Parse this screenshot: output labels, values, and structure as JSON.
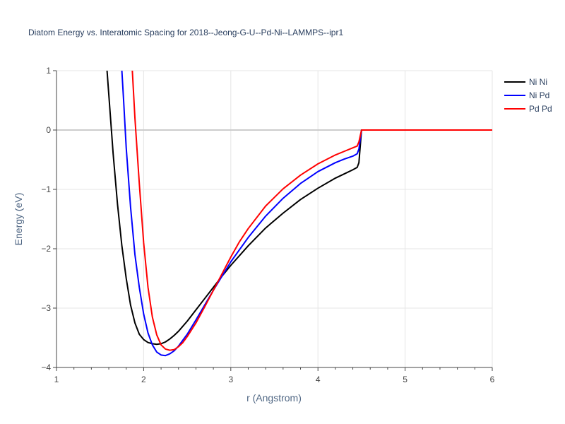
{
  "chart_data": {
    "type": "line",
    "title": "Diatom Energy vs. Interatomic Spacing for 2018--Jeong-G-U--Pd-Ni--LAMMPS--ipr1",
    "xlabel": "r (Angstrom)",
    "ylabel": "Energy (eV)",
    "xlim": [
      1,
      6
    ],
    "ylim": [
      -4,
      1
    ],
    "x_ticks": [
      1,
      2,
      3,
      4,
      5,
      6
    ],
    "y_ticks": [
      1,
      0,
      -1,
      -2,
      -3,
      -4
    ],
    "x_tick_labels": [
      "1",
      "2",
      "3",
      "4",
      "5",
      "6"
    ],
    "y_tick_labels": [
      "1",
      "0",
      "−1",
      "−2",
      "−3",
      "−4"
    ],
    "grid": true,
    "legend_position": "top-right",
    "series": [
      {
        "name": "Ni Ni",
        "color": "#000000",
        "x": [
          1.58,
          1.6,
          1.65,
          1.7,
          1.75,
          1.8,
          1.85,
          1.9,
          1.95,
          2.0,
          2.05,
          2.1,
          2.15,
          2.2,
          2.25,
          2.3,
          2.35,
          2.4,
          2.5,
          2.6,
          2.7,
          2.8,
          2.9,
          3.0,
          3.2,
          3.4,
          3.6,
          3.8,
          4.0,
          4.2,
          4.3,
          4.4,
          4.45,
          4.47,
          4.5,
          4.6,
          5.0,
          5.5,
          6.0
        ],
        "y": [
          1.0,
          0.6,
          -0.4,
          -1.25,
          -1.95,
          -2.5,
          -2.95,
          -3.25,
          -3.44,
          -3.53,
          -3.58,
          -3.6,
          -3.61,
          -3.6,
          -3.57,
          -3.52,
          -3.46,
          -3.39,
          -3.22,
          -3.03,
          -2.84,
          -2.65,
          -2.46,
          -2.28,
          -1.95,
          -1.65,
          -1.4,
          -1.17,
          -0.98,
          -0.81,
          -0.74,
          -0.67,
          -0.63,
          -0.55,
          0.0,
          0.0,
          0.0,
          0.0,
          0.0
        ]
      },
      {
        "name": "Ni Pd",
        "color": "#0000ff",
        "x": [
          1.75,
          1.77,
          1.8,
          1.85,
          1.9,
          1.95,
          2.0,
          2.05,
          2.1,
          2.15,
          2.2,
          2.25,
          2.3,
          2.35,
          2.4,
          2.5,
          2.6,
          2.7,
          2.8,
          2.9,
          3.0,
          3.2,
          3.4,
          3.6,
          3.8,
          4.0,
          4.2,
          4.3,
          4.4,
          4.45,
          4.47,
          4.5,
          4.6,
          5.0,
          5.5,
          6.0
        ],
        "y": [
          1.0,
          0.5,
          -0.3,
          -1.3,
          -2.1,
          -2.65,
          -3.1,
          -3.42,
          -3.62,
          -3.74,
          -3.79,
          -3.8,
          -3.77,
          -3.72,
          -3.64,
          -3.44,
          -3.2,
          -2.95,
          -2.7,
          -2.46,
          -2.22,
          -1.81,
          -1.45,
          -1.15,
          -0.9,
          -0.7,
          -0.55,
          -0.49,
          -0.44,
          -0.4,
          -0.32,
          0.0,
          0.0,
          0.0,
          0.0,
          0.0
        ]
      },
      {
        "name": "Pd Pd",
        "color": "#ff0000",
        "x": [
          1.87,
          1.9,
          1.95,
          2.0,
          2.05,
          2.1,
          2.15,
          2.2,
          2.25,
          2.3,
          2.35,
          2.4,
          2.45,
          2.5,
          2.6,
          2.7,
          2.8,
          2.9,
          3.0,
          3.1,
          3.2,
          3.4,
          3.6,
          3.8,
          4.0,
          4.2,
          4.3,
          4.4,
          4.45,
          4.47,
          4.5,
          4.6,
          5.0,
          5.5,
          6.0
        ],
        "y": [
          1.0,
          0.2,
          -0.9,
          -1.9,
          -2.65,
          -3.15,
          -3.45,
          -3.62,
          -3.69,
          -3.71,
          -3.7,
          -3.65,
          -3.58,
          -3.48,
          -3.25,
          -2.98,
          -2.7,
          -2.42,
          -2.14,
          -1.88,
          -1.66,
          -1.28,
          -0.99,
          -0.76,
          -0.57,
          -0.42,
          -0.36,
          -0.3,
          -0.27,
          -0.2,
          0.0,
          0.0,
          0.0,
          0.0,
          0.0
        ]
      }
    ]
  }
}
